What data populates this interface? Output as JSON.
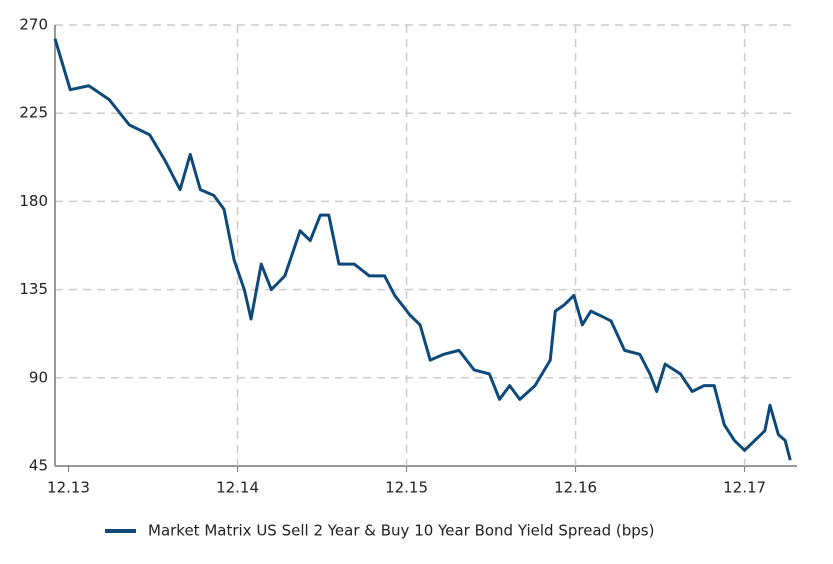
{
  "chart_data": {
    "type": "line",
    "x": [
      2013.84,
      2013.93,
      2014.04,
      2014.16,
      2014.28,
      2014.4,
      2014.49,
      2014.58,
      2014.64,
      2014.7,
      2014.78,
      2014.84,
      2014.9,
      2014.96,
      2015.0,
      2015.06,
      2015.12,
      2015.2,
      2015.29,
      2015.35,
      2015.41,
      2015.46,
      2015.52,
      2015.61,
      2015.7,
      2015.79,
      2015.85,
      2015.94,
      2016.0,
      2016.06,
      2016.14,
      2016.23,
      2016.32,
      2016.41,
      2016.47,
      2016.53,
      2016.59,
      2016.68,
      2016.77,
      2016.8,
      2016.85,
      2016.91,
      2016.96,
      2017.01,
      2017.06,
      2017.13,
      2017.21,
      2017.3,
      2017.36,
      2017.4,
      2017.45,
      2017.54,
      2017.61,
      2017.68,
      2017.74,
      2017.8,
      2017.86,
      2017.92,
      2017.98,
      2018.04,
      2018.07,
      2018.12,
      2018.16,
      2018.19
    ],
    "series": [
      {
        "name": "Market Matrix US Sell 2 Year & Buy 10 Year Bond Yield Spread (bps)",
        "color": "#0d4a7a",
        "values": [
          263,
          237,
          239,
          232,
          219,
          214,
          201,
          186,
          204,
          186,
          183,
          176,
          150,
          135,
          120,
          148,
          135,
          142,
          165,
          160,
          173,
          173,
          148,
          148,
          142,
          142,
          132,
          122,
          117,
          99,
          102,
          104,
          94,
          92,
          79,
          86,
          79,
          86,
          99,
          124,
          127,
          132,
          117,
          124,
          122,
          119,
          104,
          102,
          92,
          83,
          97,
          92,
          83,
          86,
          86,
          66,
          58,
          53,
          58,
          63,
          76,
          61,
          58,
          48
        ]
      }
    ],
    "xlim": [
      2013.84,
      2018.23
    ],
    "xticks": [
      {
        "value": 2013.92,
        "label": "12.13"
      },
      {
        "value": 2014.92,
        "label": "12.14"
      },
      {
        "value": 2015.92,
        "label": "12.15"
      },
      {
        "value": 2016.92,
        "label": "12.16"
      },
      {
        "value": 2017.92,
        "label": "12.17"
      }
    ],
    "ylim": [
      45,
      270
    ],
    "yticks": [
      45,
      90,
      135,
      180,
      225,
      270
    ],
    "grid": true,
    "legend": "bottom"
  }
}
